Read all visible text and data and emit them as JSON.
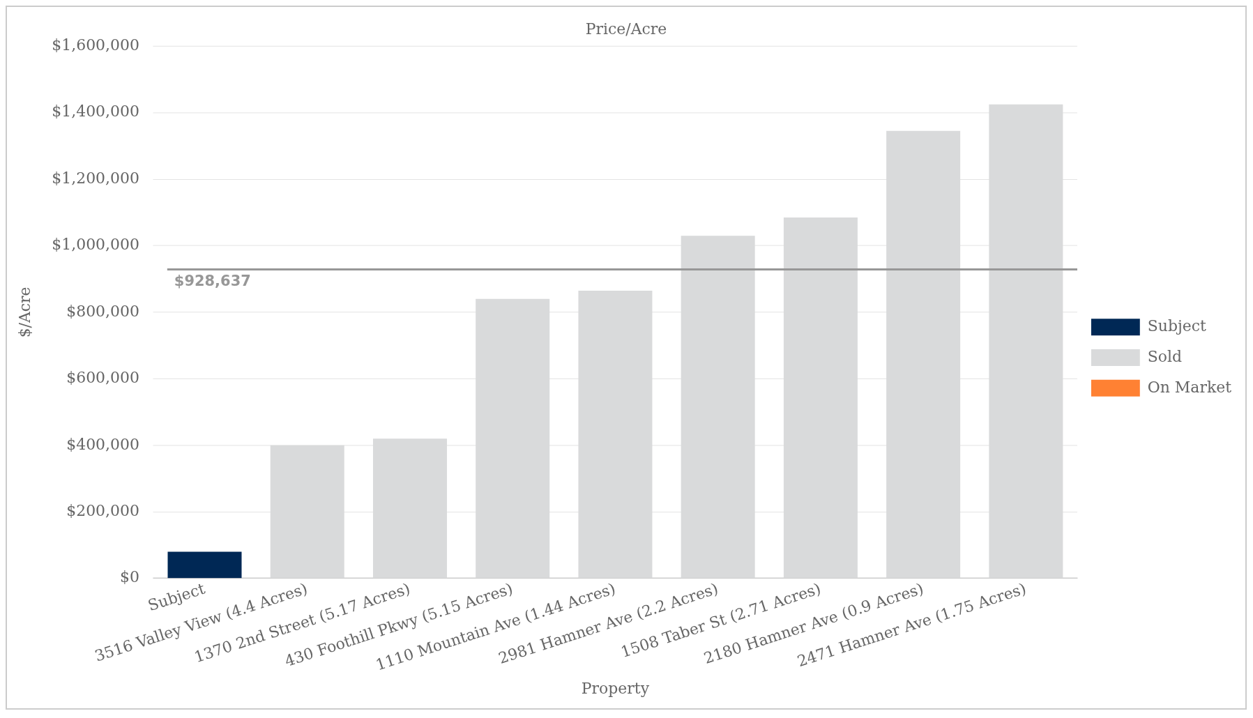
{
  "chart_data": {
    "type": "bar",
    "title": "Price/Acre",
    "xlabel": "Property",
    "ylabel": "$/Acre",
    "categories": [
      "Subject",
      "3516 Valley View (4.4 Acres)",
      "1370 2nd Street (5.17 Acres)",
      "430 Foothill Pkwy (5.15 Acres)",
      "1110 Mountain Ave (1.44 Acres)",
      "2981 Hamner Ave (2.2 Acres)",
      "1508 Taber St (2.71 Acres)",
      "2180 Hamner Ave (0.9 Acres)",
      "2471 Hamner Ave (1.75 Acres)"
    ],
    "series": [
      {
        "name": "Subject",
        "color": "#002855",
        "values": [
          80000,
          null,
          null,
          null,
          null,
          null,
          null,
          null,
          null
        ]
      },
      {
        "name": "Sold",
        "color": "#d9dadb",
        "values": [
          null,
          400000,
          420000,
          840000,
          865000,
          1030000,
          1085000,
          1345000,
          1425000
        ]
      },
      {
        "name": "On Market",
        "color": "#ff8133",
        "values": [
          null,
          null,
          null,
          null,
          null,
          null,
          null,
          null,
          null
        ]
      }
    ],
    "ylim": [
      0,
      1600000
    ],
    "yticks": [
      {
        "value": 0,
        "label": "$0"
      },
      {
        "value": 200000,
        "label": "$200,000"
      },
      {
        "value": 400000,
        "label": "$400,000"
      },
      {
        "value": 600000,
        "label": "$600,000"
      },
      {
        "value": 800000,
        "label": "$800,000"
      },
      {
        "value": 1000000,
        "label": "$1,000,000"
      },
      {
        "value": 1200000,
        "label": "$1,200,000"
      },
      {
        "value": 1400000,
        "label": "$1,400,000"
      },
      {
        "value": 1600000,
        "label": "$1,600,000"
      }
    ],
    "ref_lines": [
      {
        "axis": "y",
        "value": 928637,
        "label": "$928,637",
        "color": "#979797"
      }
    ],
    "grid": "y",
    "legend": "right"
  }
}
